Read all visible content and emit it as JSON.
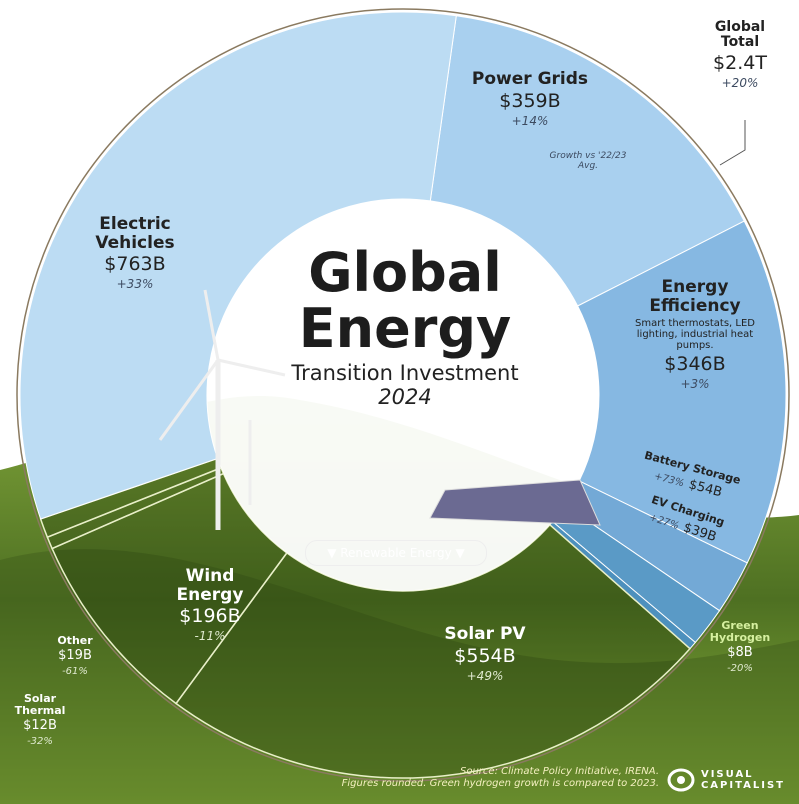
{
  "title": {
    "line1": "Global",
    "line2": "Energy",
    "subtitle": "Transition Investment",
    "year": "2024"
  },
  "renewable_label": "▼ Renewable Energy ▼",
  "global_total": {
    "name1": "Global",
    "name2": "Total",
    "value": "$2.4T",
    "growth": "+20%"
  },
  "growth_note": "Growth vs '22/23 Avg.",
  "energy_efficiency_note": "Smart thermostats, LED lighting, industrial heat pumps.",
  "source": "Source: Climate Policy Initiative, IRENA.",
  "footnote": "Figures rounded. Green hydrogen growth is compared to 2023.",
  "brand": {
    "line1": "VISUAL",
    "line2": "CAPITALIST"
  },
  "chart_data": {
    "type": "pie",
    "unit": "$B",
    "categories": [
      "Power Grids",
      "Energy Efficiency",
      "Battery Storage",
      "EV Charging",
      "Green Hydrogen",
      "Solar PV",
      "Wind Energy",
      "Solar Thermal",
      "Other",
      "Electric Vehicles"
    ],
    "values": [
      359,
      346,
      54,
      39,
      8,
      554,
      196,
      12,
      19,
      763
    ],
    "value_labels": [
      "$359B",
      "$346B",
      "$54B",
      "$39B",
      "$8B",
      "$554B",
      "$196B",
      "$12B",
      "$19B",
      "$763B"
    ],
    "growth": [
      "+14%",
      "+3%",
      "+73%",
      "+27%",
      "-20%",
      "+49%",
      "-11%",
      "-32%",
      "-61%",
      "+33%"
    ],
    "renewable": [
      false,
      false,
      false,
      false,
      false,
      true,
      true,
      true,
      true,
      false
    ],
    "colors": [
      "#a9d0ef",
      "#86b8e2",
      "#73a9d6",
      "#5a9ac6",
      "#4d90bd",
      "none",
      "none",
      "none",
      "none",
      "#bcdcf3"
    ]
  }
}
